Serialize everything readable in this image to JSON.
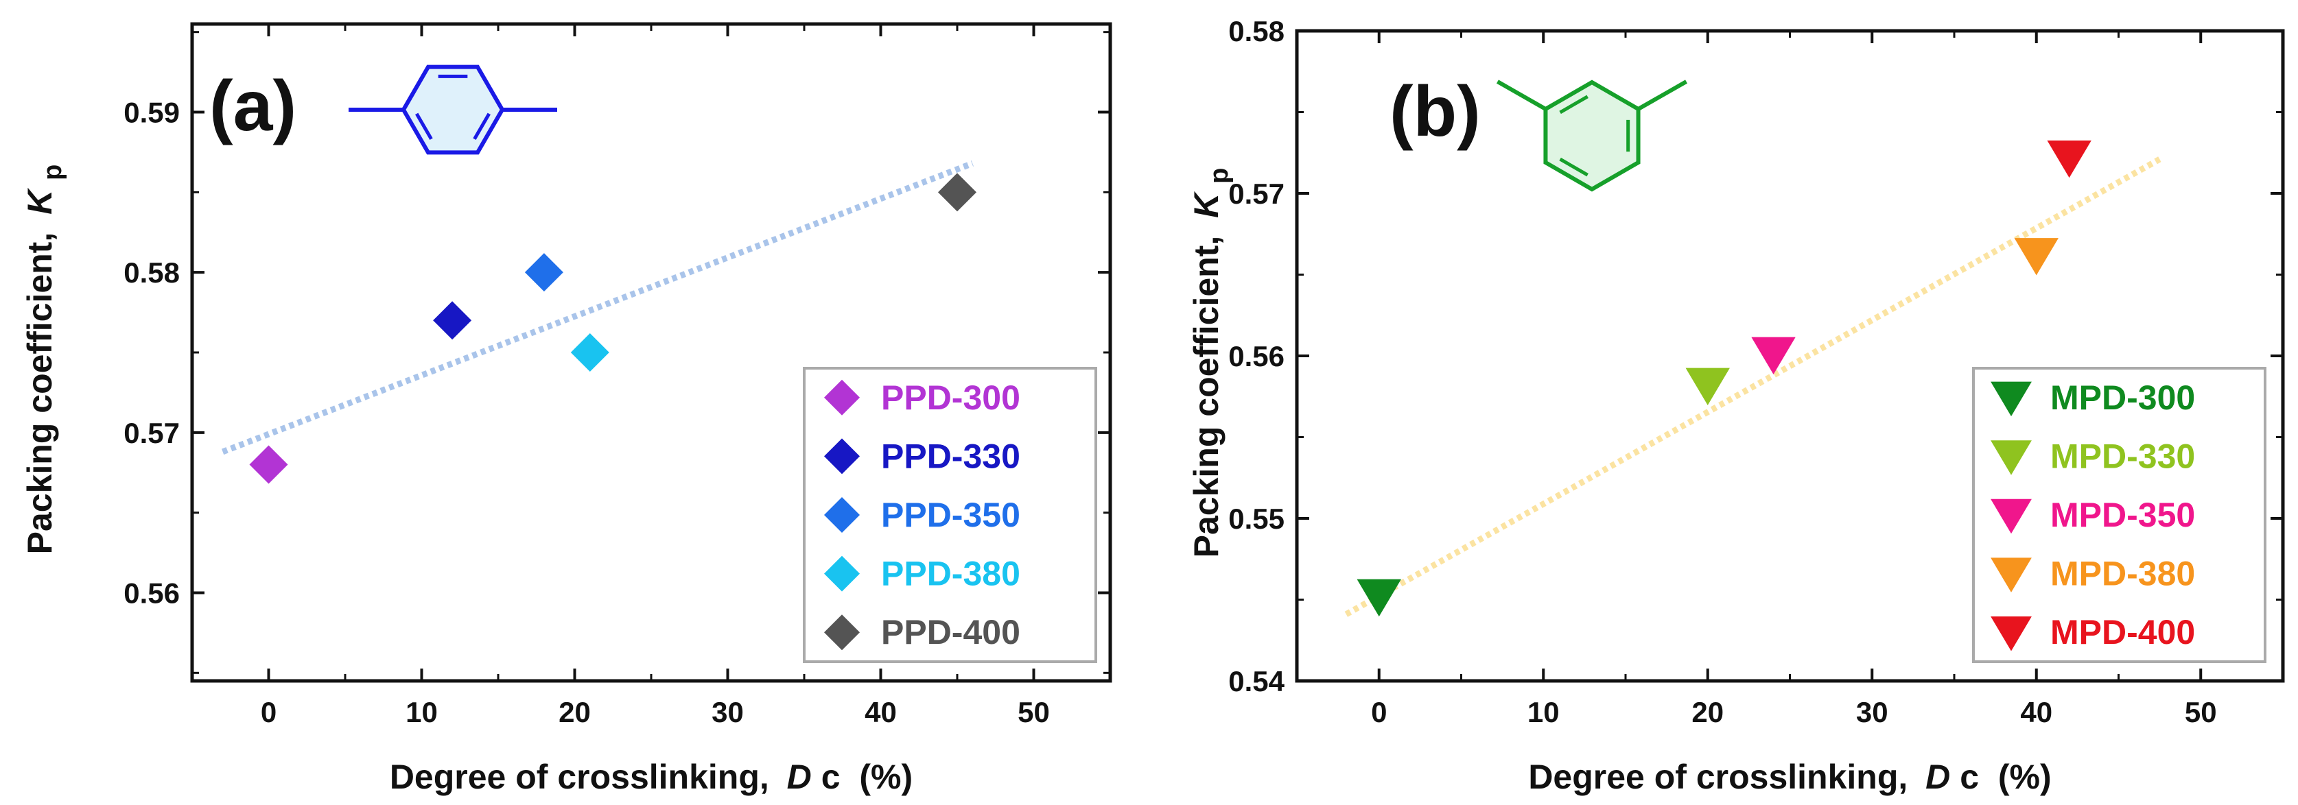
{
  "chart_data": [
    {
      "type": "scatter",
      "panel_label": "(a)",
      "xlabel": "Degree of crosslinking,",
      "xlabel_symbol": "D",
      "xlabel_symbol_sub": "c",
      "xlabel_unit": "(%)",
      "ylabel": "Packing coefficient,",
      "ylabel_symbol": "K",
      "ylabel_symbol_sub": "p",
      "xlim": [
        -5,
        55
      ],
      "ylim": [
        0.5545,
        0.5955
      ],
      "xticks": [
        0,
        10,
        20,
        30,
        40,
        50
      ],
      "xtick_labels": [
        "0",
        "10",
        "20",
        "30",
        "40",
        "50"
      ],
      "yticks": [
        0.56,
        0.57,
        0.58,
        0.59
      ],
      "ytick_labels": [
        "0.56",
        "0.57",
        "0.58",
        "0.59"
      ],
      "marker": "diamond",
      "legend_position": "bottom-right",
      "series": [
        {
          "name": "PPD-300",
          "x": 0,
          "y": 0.568,
          "color": "#b234d4"
        },
        {
          "name": "PPD-330",
          "x": 12,
          "y": 0.577,
          "color": "#1717c4"
        },
        {
          "name": "PPD-350",
          "x": 18,
          "y": 0.58,
          "color": "#1f6fea"
        },
        {
          "name": "PPD-380",
          "x": 21,
          "y": 0.575,
          "color": "#19c3f0"
        },
        {
          "name": "PPD-400",
          "x": 45,
          "y": 0.585,
          "color": "#545454"
        }
      ],
      "trendline": {
        "x": [
          -3,
          46
        ],
        "y": [
          0.5688,
          0.5868
        ],
        "color": "#a9c4ea",
        "style": "dotted"
      },
      "structure": {
        "name": "para-phenylene",
        "color": "#1a1ae6",
        "fill": "#dff1fb"
      }
    },
    {
      "type": "scatter",
      "panel_label": "(b)",
      "xlabel": "Degree of crosslinking,",
      "xlabel_symbol": "D",
      "xlabel_symbol_sub": "c",
      "xlabel_unit": "(%)",
      "ylabel": "Packing coefficient,",
      "ylabel_symbol": "K",
      "ylabel_symbol_sub": "p",
      "xlim": [
        -5,
        55
      ],
      "ylim": [
        0.54,
        0.58
      ],
      "xticks": [
        0,
        10,
        20,
        30,
        40,
        50
      ],
      "xtick_labels": [
        "0",
        "10",
        "20",
        "30",
        "40",
        "50"
      ],
      "yticks": [
        0.54,
        0.55,
        0.56,
        0.57,
        0.58
      ],
      "ytick_labels": [
        "0.54",
        "0.55",
        "0.56",
        "0.57",
        "0.58"
      ],
      "marker": "triangle-down",
      "legend_position": "bottom-right",
      "series": [
        {
          "name": "MPD-300",
          "x": 0,
          "y": 0.5452,
          "color": "#0f8a1f"
        },
        {
          "name": "MPD-330",
          "x": 20,
          "y": 0.5582,
          "color": "#8fc31f"
        },
        {
          "name": "MPD-350",
          "x": 24,
          "y": 0.5601,
          "color": "#f0168c"
        },
        {
          "name": "MPD-380",
          "x": 40,
          "y": 0.5662,
          "color": "#f7941d"
        },
        {
          "name": "MPD-400",
          "x": 42,
          "y": 0.5722,
          "color": "#e8141e"
        }
      ],
      "trendline": {
        "x": [
          -2,
          47.5
        ],
        "y": [
          0.5441,
          0.5721
        ],
        "color": "#fbe3a1",
        "style": "dotted"
      },
      "structure": {
        "name": "meta-phenylene",
        "color": "#16a02a",
        "fill": "#dff5e3"
      }
    }
  ]
}
